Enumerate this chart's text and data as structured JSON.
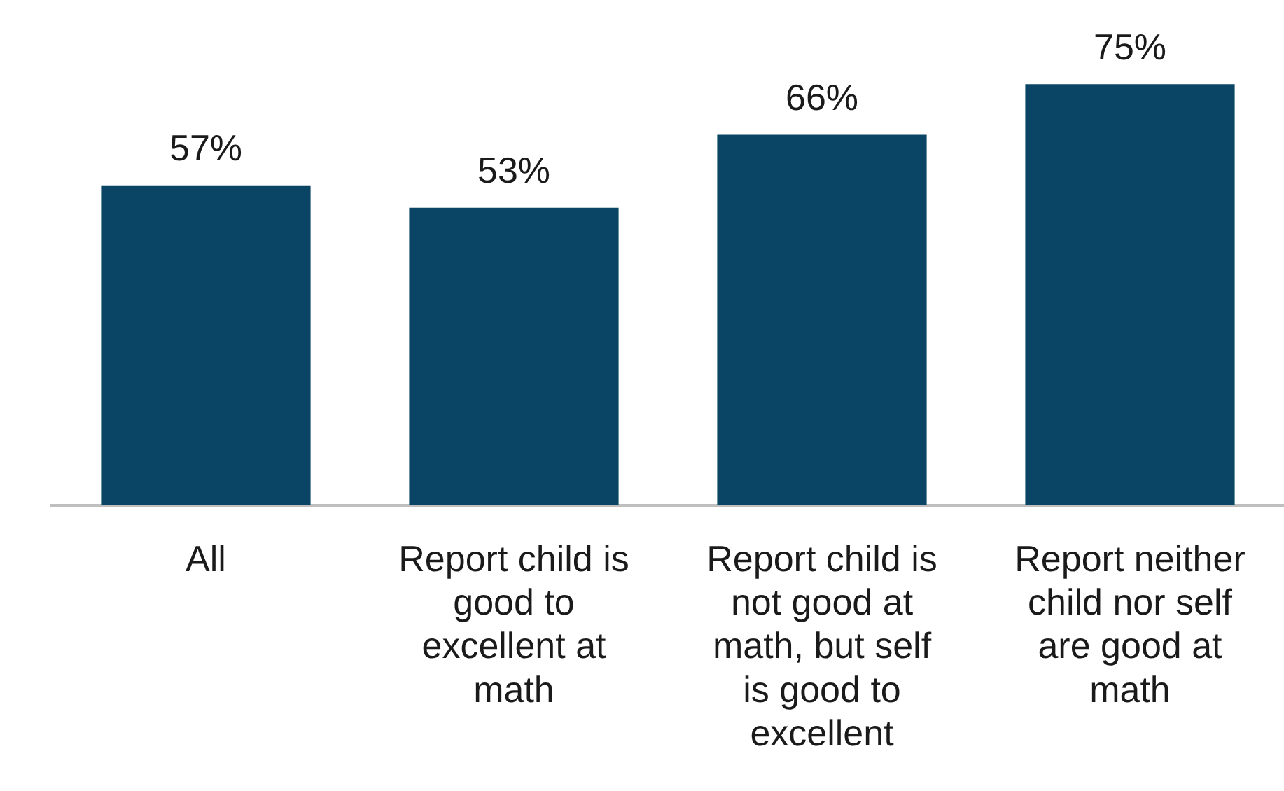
{
  "chart_data": {
    "type": "bar",
    "categories": [
      "All",
      "Report child is good to excellent at math",
      "Report child is not good at math, but self is good to excellent",
      "Report neither child nor self are good at math"
    ],
    "values": [
      57,
      53,
      66,
      75
    ],
    "value_labels": [
      "57%",
      "53%",
      "66%",
      "75%"
    ],
    "color": "#0b4566",
    "grid": false,
    "legend": false
  }
}
